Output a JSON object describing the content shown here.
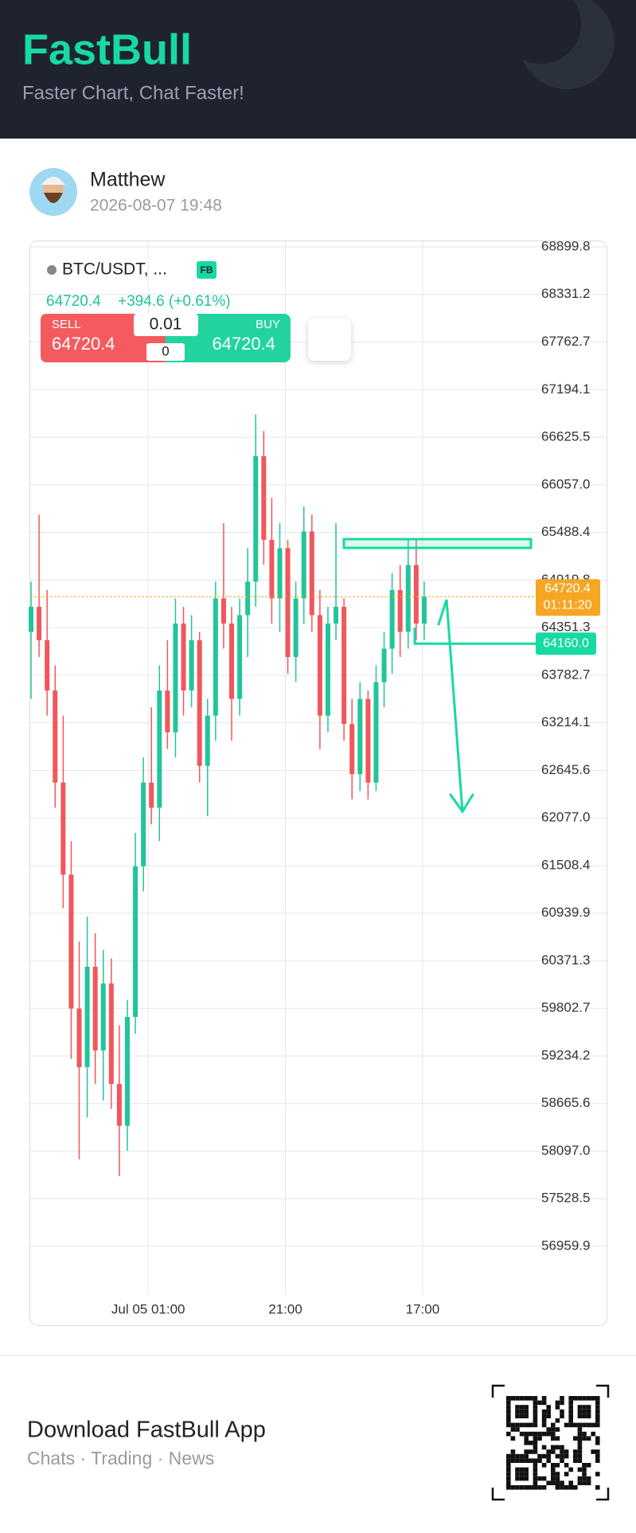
{
  "header": {
    "title": "FastBull",
    "subtitle": "Faster Chart, Chat Faster!"
  },
  "post": {
    "author": "Matthew",
    "date": "2026-08-07 19:48"
  },
  "chart_data": {
    "type": "candlestick",
    "symbol": "BTC/USDT, ...",
    "badge": "FB",
    "quote": {
      "price": "64720.4",
      "change": "+394.6 (+0.61%)"
    },
    "trade": {
      "sell_label": "SELL",
      "sell_price": "64720.4",
      "lot": "0.01",
      "buy_label": "BUY",
      "buy_price": "64720.4",
      "quantity": "0"
    },
    "open": [
      64300,
      64600,
      64200,
      63600,
      62500,
      61400,
      59800,
      59100,
      60300,
      59300,
      60100,
      58900,
      58400,
      59700,
      61500,
      62500,
      62200,
      63600,
      63100,
      64400,
      63600,
      64200,
      62700,
      63300,
      64700,
      64400,
      63500,
      64500,
      64900,
      66400,
      65400,
      64700,
      65300,
      64000,
      64700,
      65500,
      64500,
      63300,
      64400,
      64600,
      63200,
      62600,
      63500,
      62500,
      63700,
      64100,
      64800,
      64300,
      65100,
      64400
    ],
    "high": [
      64900,
      65700,
      64800,
      63900,
      63300,
      61800,
      60600,
      60900,
      60700,
      60500,
      60400,
      59600,
      59900,
      61900,
      62800,
      63400,
      63900,
      64200,
      64700,
      64600,
      64500,
      64300,
      63500,
      64900,
      65600,
      64600,
      64700,
      65300,
      66900,
      66700,
      65900,
      65600,
      65400,
      64900,
      65800,
      65700,
      64800,
      64600,
      65600,
      64700,
      63500,
      63700,
      63600,
      63900,
      64300,
      65000,
      65100,
      65400,
      65400,
      64900
    ],
    "low": [
      63500,
      64000,
      63300,
      62200,
      61000,
      59200,
      58000,
      58500,
      58900,
      58700,
      58600,
      57800,
      58100,
      59500,
      61200,
      62000,
      61800,
      62900,
      62800,
      63300,
      63400,
      62500,
      62100,
      63000,
      64100,
      63000,
      63300,
      64000,
      64600,
      65100,
      64400,
      64300,
      63800,
      63700,
      64400,
      64300,
      62900,
      63100,
      64200,
      63000,
      62300,
      62400,
      62300,
      62400,
      63400,
      63800,
      64000,
      64100,
      64200,
      64200
    ],
    "close": [
      64600,
      64200,
      63600,
      62500,
      61400,
      59800,
      59100,
      60300,
      59300,
      60100,
      58900,
      58400,
      59700,
      61500,
      62500,
      62200,
      63600,
      63100,
      64400,
      63600,
      64200,
      62700,
      63300,
      64700,
      64400,
      63500,
      64500,
      64900,
      66400,
      65400,
      64700,
      65300,
      64000,
      64700,
      65500,
      64500,
      63300,
      64400,
      64600,
      63200,
      62600,
      63500,
      62500,
      63700,
      64100,
      64800,
      64300,
      65100,
      64400,
      64720.4
    ],
    "colors": {
      "up": "#22c59a",
      "down": "#f0575c"
    },
    "xlim": [
      -0.2,
      62.3
    ],
    "xticks": [
      {
        "value": 14.6,
        "label": "Jul 05 01:00"
      },
      {
        "value": 31.7,
        "label": "21:00"
      },
      {
        "value": 48.8,
        "label": "17:00"
      }
    ],
    "ylim": [
      56959.9,
      68899.8
    ],
    "yticks": [
      68899.8,
      68331.2,
      67762.7,
      67194.1,
      66625.5,
      {
        "value": 66057,
        "label": "66057.0"
      },
      65488.4,
      64919.8,
      64351.3,
      63782.7,
      63214.1,
      62645.6,
      {
        "value": 62077,
        "label": "62077.0"
      },
      61508.4,
      60939.9,
      60371.3,
      59802.7,
      59234.2,
      58665.6,
      {
        "value": 58097,
        "label": "58097.0"
      },
      57528.5,
      56959.9
    ],
    "grid": true,
    "last_price": 64720.4,
    "countdown": "01:11:20",
    "level": {
      "value": 64160,
      "label": "64160.0"
    }
  },
  "footer": {
    "title": "Download FastBull App",
    "subtitle": "Chats · Trading · News"
  }
}
